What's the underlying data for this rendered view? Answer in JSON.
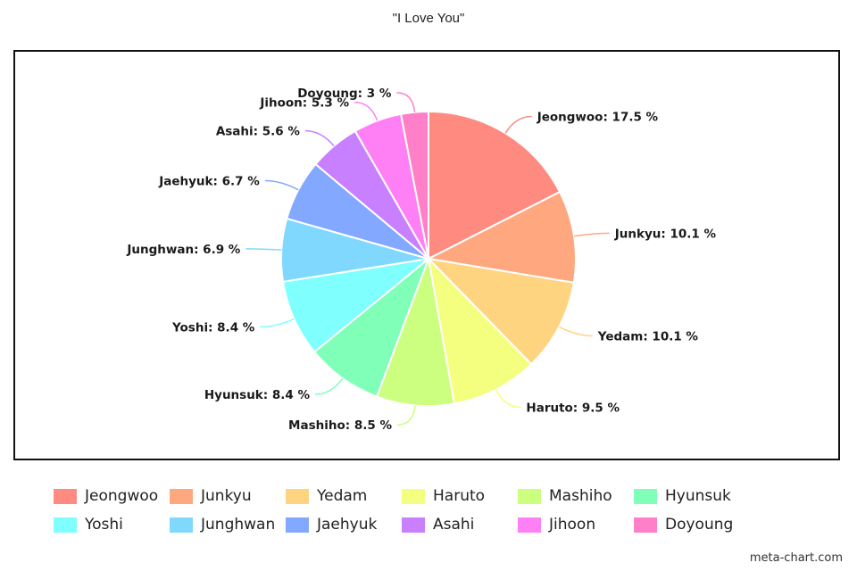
{
  "chart_data": {
    "type": "pie",
    "title": "\"I Love You\"",
    "legend_position": "bottom",
    "unit": "%",
    "slices": [
      {
        "name": "Jeongwoo",
        "value": 17.5,
        "color": "#ff8a80"
      },
      {
        "name": "Junkyu",
        "value": 10.1,
        "color": "#ffa880"
      },
      {
        "name": "Yedam",
        "value": 10.1,
        "color": "#ffd480"
      },
      {
        "name": "Haruto",
        "value": 9.5,
        "color": "#f4ff80"
      },
      {
        "name": "Mashiho",
        "value": 8.5,
        "color": "#ccff80"
      },
      {
        "name": "Hyunsuk",
        "value": 8.4,
        "color": "#80ffb8"
      },
      {
        "name": "Yoshi",
        "value": 8.4,
        "color": "#80ffff"
      },
      {
        "name": "Junghwan",
        "value": 6.9,
        "color": "#80d8ff"
      },
      {
        "name": "Jaehyuk",
        "value": 6.7,
        "color": "#82a8ff"
      },
      {
        "name": "Asahi",
        "value": 5.6,
        "color": "#c880ff"
      },
      {
        "name": "Jihoon",
        "value": 5.3,
        "color": "#ff80f4"
      },
      {
        "name": "Doyoung",
        "value": 3,
        "color": "#ff80c8"
      }
    ]
  },
  "watermark": "meta-chart.com"
}
